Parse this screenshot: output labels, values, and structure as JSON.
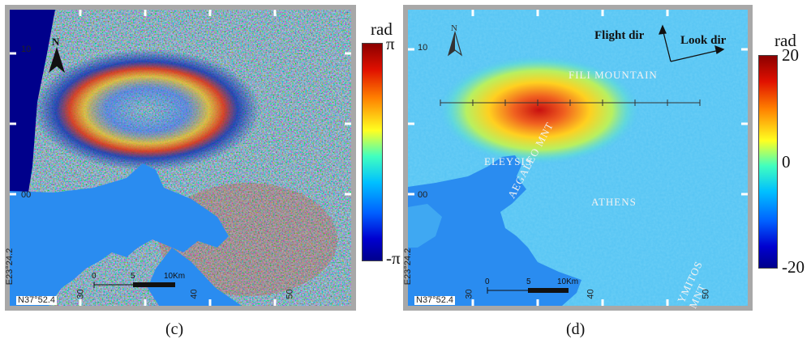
{
  "panel_c": {
    "caption": "(c)",
    "colorbar": {
      "unit": "rad",
      "max_label": "π",
      "min_label": "-π"
    },
    "grid_left": [
      "10",
      "00"
    ],
    "grid_bottom": [
      "30",
      "40",
      "50"
    ],
    "corner_lon": "E23°24.2",
    "corner_lat": "N37°52.4",
    "scalebar": {
      "zero": "0",
      "mid": "5",
      "end": "10Km"
    }
  },
  "panel_d": {
    "caption": "(d)",
    "colorbar": {
      "unit": "rad",
      "ticks": [
        "20",
        "0",
        "-20"
      ]
    },
    "flight_dir": "Flight dir",
    "look_dir": "Look dir",
    "places": {
      "fili": "FILI MOUNTAIN",
      "eleysis": "ELEYSIS",
      "aegaleo": "AEGALEO MNT",
      "athens": "ATHENS",
      "ymitos": "YMITOS MNT"
    },
    "grid_left": [
      "10",
      "00"
    ],
    "grid_bottom": [
      "30",
      "40",
      "50"
    ],
    "corner_lon": "E23°24.2",
    "corner_lat": "N37°52.4",
    "scalebar": {
      "zero": "0",
      "mid": "5",
      "end": "10Km"
    }
  },
  "colors": {
    "sea": "#2a8cf0",
    "deep_sea": "#00008b",
    "frame": "#a8a8a8",
    "background": "#54c4f4"
  },
  "icons": [
    "north-arrow-icon",
    "flight-direction-arrow-icon",
    "look-direction-arrow-icon"
  ]
}
